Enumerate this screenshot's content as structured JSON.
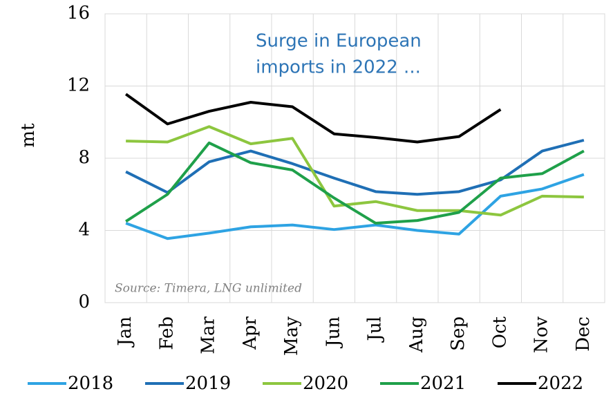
{
  "chart_data": {
    "type": "line",
    "y_label": "mt",
    "annotation": [
      "Surge in European",
      "imports in 2022 ..."
    ],
    "source": "Source: Timera, LNG unlimited",
    "categories": [
      "Jan",
      "Feb",
      "Mar",
      "Apr",
      "May",
      "Jun",
      "Jul",
      "Aug",
      "Sep",
      "Oct",
      "Nov",
      "Dec"
    ],
    "series": [
      {
        "name": "2018",
        "color": "#2ea3e3",
        "values": [
          4.4,
          3.55,
          3.85,
          4.2,
          4.3,
          4.05,
          4.3,
          4.0,
          3.8,
          5.9,
          6.3,
          7.1
        ]
      },
      {
        "name": "2019",
        "color": "#1f6fb5",
        "values": [
          7.25,
          6.1,
          7.8,
          8.4,
          7.7,
          6.9,
          6.15,
          6.0,
          6.15,
          6.8,
          8.4,
          9.0
        ]
      },
      {
        "name": "2020",
        "color": "#8dc63f",
        "values": [
          8.95,
          8.9,
          9.75,
          8.8,
          9.1,
          5.35,
          5.6,
          5.1,
          5.1,
          4.85,
          5.9,
          5.85
        ]
      },
      {
        "name": "2021",
        "color": "#1fa04a",
        "values": [
          4.5,
          6.0,
          8.85,
          7.75,
          7.35,
          5.8,
          4.4,
          4.55,
          5.0,
          6.9,
          7.15,
          8.4
        ]
      },
      {
        "name": "2022",
        "color": "#000000",
        "values": [
          11.55,
          9.9,
          10.6,
          11.1,
          10.85,
          9.35,
          9.15,
          8.9,
          9.2,
          10.7,
          null,
          null
        ]
      }
    ],
    "ylim": [
      0,
      16
    ],
    "yticks": [
      0,
      4,
      8,
      12,
      16
    ],
    "grid": true,
    "legend": "bottom"
  }
}
